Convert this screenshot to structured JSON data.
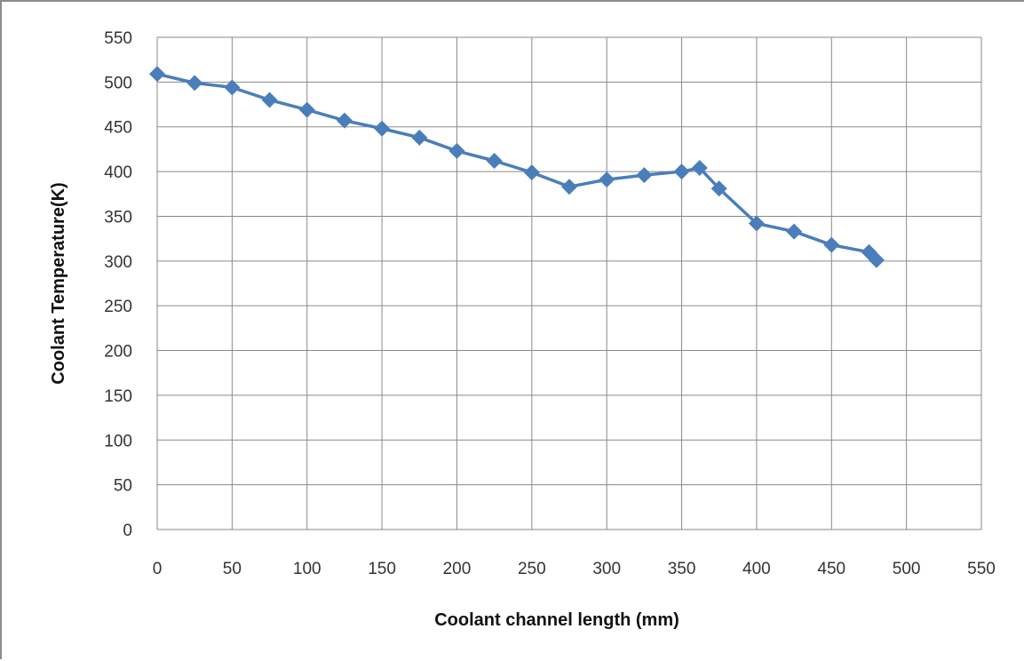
{
  "chart_data": {
    "type": "line",
    "title": "",
    "xlabel": "Coolant channel length (mm)",
    "ylabel": "Coolant Temperature(K)",
    "xlim": [
      0,
      550
    ],
    "ylim": [
      0,
      550
    ],
    "x_ticks": [
      "0",
      "50",
      "100",
      "150",
      "200",
      "250",
      "300",
      "350",
      "400",
      "450",
      "500",
      "550"
    ],
    "y_ticks": [
      "0",
      "50",
      "100",
      "150",
      "200",
      "250",
      "300",
      "350",
      "400",
      "450",
      "500",
      "550"
    ],
    "grid": true,
    "marker": "diamond",
    "series": [
      {
        "color": "#4a7ebb",
        "points": [
          [
            0,
            509
          ],
          [
            25,
            499
          ],
          [
            50,
            494
          ],
          [
            75,
            480
          ],
          [
            100,
            469
          ],
          [
            125,
            457
          ],
          [
            150,
            448
          ],
          [
            175,
            438
          ],
          [
            200,
            423
          ],
          [
            225,
            412
          ],
          [
            250,
            399
          ],
          [
            275,
            383
          ],
          [
            300,
            391
          ],
          [
            325,
            396
          ],
          [
            350,
            400
          ],
          [
            362,
            404
          ],
          [
            375,
            381
          ],
          [
            400,
            342
          ],
          [
            425,
            333
          ],
          [
            450,
            318
          ],
          [
            475,
            310
          ],
          [
            480,
            301
          ]
        ]
      }
    ]
  }
}
